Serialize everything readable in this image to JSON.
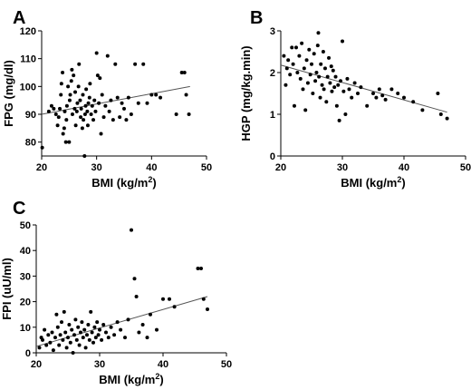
{
  "chart_data": [
    {
      "type": "scatter",
      "panel": "A",
      "xlabel": "BMI (kg/m2)",
      "xlabel_base": "BMI (kg/m",
      "xlabel_sup": "2",
      "xlabel_tail": ")",
      "ylabel": "FPG (mg/dl)",
      "xlim": [
        20,
        50
      ],
      "ylim": [
        75,
        120
      ],
      "xticks": [
        20,
        30,
        40,
        50
      ],
      "yticks": [
        80,
        90,
        100,
        110,
        120
      ],
      "trendline": [
        [
          20,
          90
        ],
        [
          47,
          100
        ]
      ],
      "points": [
        [
          20.1,
          78
        ],
        [
          21.3,
          91
        ],
        [
          21.8,
          93
        ],
        [
          22.2,
          92
        ],
        [
          22.6,
          90
        ],
        [
          22.9,
          86
        ],
        [
          23.1,
          89
        ],
        [
          23.3,
          92
        ],
        [
          23.5,
          97
        ],
        [
          23.6,
          101
        ],
        [
          23.8,
          105
        ],
        [
          23.9,
          83
        ],
        [
          24.1,
          85
        ],
        [
          24.2,
          91
        ],
        [
          24.4,
          80
        ],
        [
          24.5,
          88
        ],
        [
          24.6,
          93
        ],
        [
          24.8,
          100
        ],
        [
          25.0,
          80
        ],
        [
          25.1,
          95
        ],
        [
          25.2,
          97
        ],
        [
          25.4,
          102
        ],
        [
          25.5,
          106
        ],
        [
          25.6,
          90
        ],
        [
          25.8,
          104
        ],
        [
          26.0,
          92
        ],
        [
          26.1,
          98
        ],
        [
          26.2,
          86
        ],
        [
          26.4,
          91
        ],
        [
          26.5,
          94
        ],
        [
          26.7,
          100
        ],
        [
          26.8,
          108
        ],
        [
          27.0,
          95
        ],
        [
          27.1,
          89
        ],
        [
          27.2,
          92
        ],
        [
          27.4,
          85
        ],
        [
          27.5,
          97
        ],
        [
          27.6,
          88
        ],
        [
          27.8,
          75
        ],
        [
          27.9,
          90
        ],
        [
          28.0,
          93
        ],
        [
          28.1,
          99
        ],
        [
          28.3,
          91
        ],
        [
          28.4,
          86
        ],
        [
          28.5,
          94
        ],
        [
          28.7,
          96
        ],
        [
          28.8,
          101
        ],
        [
          29.0,
          90
        ],
        [
          29.2,
          93
        ],
        [
          29.4,
          88
        ],
        [
          29.6,
          95
        ],
        [
          29.8,
          91
        ],
        [
          30.0,
          112
        ],
        [
          30.2,
          104
        ],
        [
          30.4,
          94
        ],
        [
          30.6,
          103
        ],
        [
          30.8,
          83
        ],
        [
          31.0,
          97
        ],
        [
          31.3,
          89
        ],
        [
          31.6,
          93
        ],
        [
          32.0,
          111
        ],
        [
          32.3,
          91
        ],
        [
          32.6,
          95
        ],
        [
          33.0,
          88
        ],
        [
          33.4,
          108
        ],
        [
          33.8,
          96
        ],
        [
          34.2,
          89
        ],
        [
          34.6,
          94
        ],
        [
          35.0,
          92
        ],
        [
          35.4,
          88
        ],
        [
          35.8,
          96
        ],
        [
          36.3,
          90
        ],
        [
          37.0,
          108
        ],
        [
          37.6,
          94
        ],
        [
          38.5,
          108
        ],
        [
          39.2,
          94
        ],
        [
          40.0,
          97
        ],
        [
          40.8,
          97
        ],
        [
          41.6,
          96
        ],
        [
          44.5,
          90
        ],
        [
          45.5,
          105
        ],
        [
          46.0,
          105
        ],
        [
          46.3,
          97
        ],
        [
          46.8,
          90
        ]
      ]
    },
    {
      "type": "scatter",
      "panel": "B",
      "xlabel": "BMI (kg/m2)",
      "xlabel_base": "BMI (kg/m",
      "xlabel_sup": "2",
      "xlabel_tail": ")",
      "ylabel": "HGP (mg/kg.min)",
      "xlim": [
        20,
        50
      ],
      "ylim": [
        0,
        3
      ],
      "xticks": [
        20,
        30,
        40,
        50
      ],
      "yticks": [
        0,
        1,
        2,
        3
      ],
      "trendline": [
        [
          20,
          2.18
        ],
        [
          47,
          1.05
        ]
      ],
      "points": [
        [
          20.5,
          2.4
        ],
        [
          20.8,
          1.7
        ],
        [
          21.0,
          2.1
        ],
        [
          21.2,
          2.3
        ],
        [
          21.5,
          1.95
        ],
        [
          21.8,
          2.6
        ],
        [
          22.0,
          2.2
        ],
        [
          22.2,
          1.2
        ],
        [
          22.5,
          2.6
        ],
        [
          22.7,
          2.0
        ],
        [
          23.0,
          2.4
        ],
        [
          23.2,
          1.85
        ],
        [
          23.4,
          2.7
        ],
        [
          23.6,
          1.6
        ],
        [
          23.8,
          2.1
        ],
        [
          24.0,
          1.1
        ],
        [
          24.2,
          2.3
        ],
        [
          24.4,
          1.75
        ],
        [
          24.6,
          2.55
        ],
        [
          24.8,
          1.95
        ],
        [
          25.0,
          2.2
        ],
        [
          25.2,
          1.5
        ],
        [
          25.4,
          2.45
        ],
        [
          25.6,
          1.8
        ],
        [
          25.8,
          2.0
        ],
        [
          26.0,
          2.65
        ],
        [
          26.1,
          2.95
        ],
        [
          26.2,
          1.9
        ],
        [
          26.4,
          1.4
        ],
        [
          26.5,
          2.2
        ],
        [
          26.7,
          1.7
        ],
        [
          26.9,
          2.5
        ],
        [
          27.0,
          1.6
        ],
        [
          27.2,
          2.1
        ],
        [
          27.4,
          1.3
        ],
        [
          27.6,
          1.9
        ],
        [
          27.8,
          2.35
        ],
        [
          28.0,
          1.75
        ],
        [
          28.2,
          2.15
        ],
        [
          28.3,
          1.55
        ],
        [
          28.5,
          2.05
        ],
        [
          28.7,
          1.65
        ],
        [
          28.9,
          1.9
        ],
        [
          29.1,
          1.2
        ],
        [
          29.3,
          1.7
        ],
        [
          29.5,
          0.85
        ],
        [
          29.7,
          1.8
        ],
        [
          30.0,
          2.75
        ],
        [
          30.2,
          1.55
        ],
        [
          30.5,
          1.0
        ],
        [
          30.8,
          1.85
        ],
        [
          31.1,
          1.6
        ],
        [
          31.5,
          1.4
        ],
        [
          32.0,
          1.75
        ],
        [
          32.5,
          1.5
        ],
        [
          33.0,
          1.65
        ],
        [
          34.0,
          1.2
        ],
        [
          35.0,
          1.5
        ],
        [
          35.5,
          1.4
        ],
        [
          36.0,
          1.6
        ],
        [
          36.5,
          1.45
        ],
        [
          37.0,
          1.35
        ],
        [
          38.0,
          1.6
        ],
        [
          39.0,
          1.5
        ],
        [
          40.0,
          1.4
        ],
        [
          41.5,
          1.3
        ],
        [
          43.0,
          1.1
        ],
        [
          45.5,
          1.5
        ],
        [
          46.0,
          1.0
        ],
        [
          47.0,
          0.9
        ]
      ]
    },
    {
      "type": "scatter",
      "panel": "C",
      "xlabel": "BMI (kg/m2)",
      "xlabel_base": "BMI (kg/m",
      "xlabel_sup": "2",
      "xlabel_tail": ")",
      "ylabel": "FPI (uU/ml)",
      "xlim": [
        20,
        50
      ],
      "ylim": [
        0,
        50
      ],
      "xticks": [
        20,
        30,
        40,
        50
      ],
      "yticks": [
        0,
        10,
        20,
        30,
        40,
        50
      ],
      "trendline": [
        [
          20,
          2.5
        ],
        [
          47,
          22
        ]
      ],
      "points": [
        [
          20.5,
          2
        ],
        [
          20.8,
          6
        ],
        [
          21.0,
          5
        ],
        [
          21.3,
          9
        ],
        [
          21.6,
          3
        ],
        [
          21.9,
          7
        ],
        [
          22.2,
          4
        ],
        [
          22.5,
          8
        ],
        [
          22.7,
          1
        ],
        [
          23.0,
          6
        ],
        [
          23.2,
          15
        ],
        [
          23.4,
          10
        ],
        [
          23.6,
          3
        ],
        [
          23.8,
          7
        ],
        [
          24.0,
          12
        ],
        [
          24.2,
          5
        ],
        [
          24.4,
          16
        ],
        [
          24.6,
          8
        ],
        [
          24.8,
          2
        ],
        [
          25.0,
          6
        ],
        [
          25.2,
          11
        ],
        [
          25.4,
          4
        ],
        [
          25.6,
          9
        ],
        [
          25.8,
          0
        ],
        [
          26.0,
          7
        ],
        [
          26.2,
          13
        ],
        [
          26.4,
          5
        ],
        [
          26.6,
          10
        ],
        [
          26.8,
          3
        ],
        [
          27.0,
          8
        ],
        [
          27.2,
          12
        ],
        [
          27.4,
          6
        ],
        [
          27.6,
          9
        ],
        [
          27.8,
          2
        ],
        [
          28.0,
          7
        ],
        [
          28.2,
          11
        ],
        [
          28.4,
          5
        ],
        [
          28.6,
          16
        ],
        [
          28.8,
          8
        ],
        [
          29.0,
          4
        ],
        [
          29.2,
          10
        ],
        [
          29.4,
          6
        ],
        [
          29.6,
          12
        ],
        [
          29.8,
          7
        ],
        [
          30.0,
          9
        ],
        [
          30.3,
          5
        ],
        [
          30.6,
          11
        ],
        [
          31.0,
          8
        ],
        [
          31.4,
          6
        ],
        [
          31.8,
          10
        ],
        [
          32.3,
          7
        ],
        [
          32.8,
          12
        ],
        [
          33.3,
          9
        ],
        [
          34.0,
          6
        ],
        [
          34.5,
          13
        ],
        [
          35.0,
          48
        ],
        [
          35.5,
          29
        ],
        [
          35.8,
          22
        ],
        [
          36.2,
          8
        ],
        [
          36.8,
          11
        ],
        [
          37.5,
          6
        ],
        [
          38.0,
          15
        ],
        [
          39.0,
          9
        ],
        [
          40.0,
          21
        ],
        [
          41.0,
          21
        ],
        [
          41.8,
          18
        ],
        [
          45.5,
          33
        ],
        [
          46.0,
          33
        ],
        [
          46.4,
          21
        ],
        [
          47.0,
          17
        ]
      ]
    }
  ]
}
